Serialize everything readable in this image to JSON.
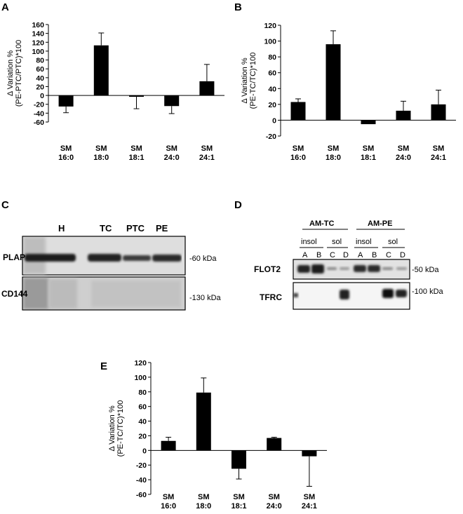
{
  "panels": {
    "a": "A",
    "b": "B",
    "c": "C",
    "d": "D",
    "e": "E"
  },
  "chart_data": [
    {
      "id": "A",
      "type": "bar",
      "categories": [
        [
          "SM",
          "16:0"
        ],
        [
          "SM",
          "18:0"
        ],
        [
          "SM",
          "18:1"
        ],
        [
          "SM",
          "24:0"
        ],
        [
          "SM",
          "24:1"
        ]
      ],
      "values": [
        -25,
        113,
        -3,
        -24,
        32
      ],
      "errors": [
        14,
        28,
        27,
        17,
        38
      ],
      "ylim": [
        -60,
        160
      ],
      "yticks": [
        -60,
        -40,
        -20,
        0,
        20,
        40,
        60,
        80,
        100,
        120,
        140,
        160
      ],
      "ylabel_lines": [
        "Δ Variation %",
        "(PE-PTC/PTC)*100"
      ],
      "grid": false
    },
    {
      "id": "B",
      "type": "bar",
      "categories": [
        [
          "SM",
          "16:0"
        ],
        [
          "SM",
          "18:0"
        ],
        [
          "SM",
          "18:1"
        ],
        [
          "SM",
          "24:0"
        ],
        [
          "SM",
          "24:1"
        ]
      ],
      "values": [
        23,
        96,
        -5,
        12,
        20
      ],
      "errors": [
        4,
        17,
        0,
        12,
        18
      ],
      "ylim": [
        -20,
        120
      ],
      "yticks": [
        -20,
        0,
        20,
        40,
        60,
        80,
        100,
        120
      ],
      "ylabel_lines": [
        "Δ Variation %",
        "(PE-TC/TC)*100"
      ],
      "grid": false
    },
    {
      "id": "E",
      "type": "bar",
      "categories": [
        [
          "SM",
          "16:0"
        ],
        [
          "SM",
          "18:0"
        ],
        [
          "SM",
          "18:1"
        ],
        [
          "SM",
          "24:0"
        ],
        [
          "SM",
          "24:1"
        ]
      ],
      "values": [
        13,
        79,
        -25,
        17,
        -8
      ],
      "errors": [
        5,
        20,
        14,
        1,
        41
      ],
      "ylim": [
        -60,
        120
      ],
      "yticks": [
        -60,
        -40,
        -20,
        0,
        20,
        40,
        60,
        80,
        100,
        120
      ],
      "ylabel_lines": [
        "Δ Variation %",
        "(PE-TC/TC)*100"
      ],
      "grid": false
    }
  ],
  "blot_c": {
    "lanes": [
      "H",
      "TC",
      "PTC",
      "PE"
    ],
    "rows": [
      "PLAP",
      "CD144"
    ],
    "markers": [
      "-60 kDa",
      "-130 kDa"
    ]
  },
  "blot_d": {
    "groups": [
      "AM-TC",
      "AM-PE"
    ],
    "fractions": [
      "insol",
      "sol",
      "insol",
      "sol"
    ],
    "lanes": [
      "A",
      "B",
      "C",
      "D",
      "A",
      "B",
      "C",
      "D"
    ],
    "rows": [
      "FLOT2",
      "TFRC"
    ],
    "markers": [
      "-50 kDa",
      "-100 kDa"
    ]
  }
}
